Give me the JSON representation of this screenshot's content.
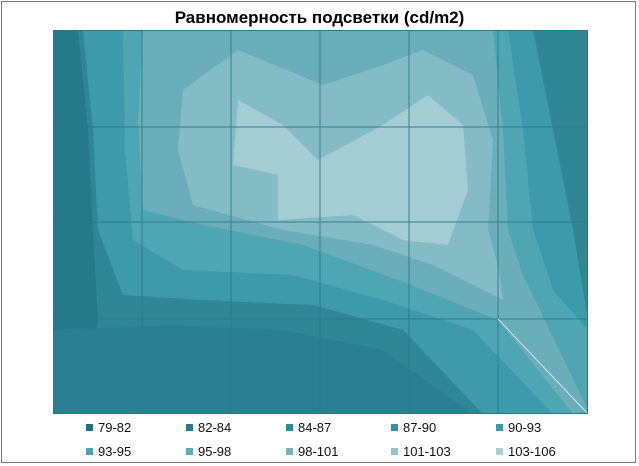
{
  "chart_data": {
    "type": "heatmap",
    "title": "Равномерность подсветки (cd/m2)",
    "grid": true,
    "legend_position": "bottom",
    "levels": [
      {
        "label": "79-82",
        "range": [
          79,
          82
        ],
        "color": "#1f6f80"
      },
      {
        "label": "82-84",
        "range": [
          82,
          84
        ],
        "color": "#227d8d"
      },
      {
        "label": "84-87",
        "range": [
          84,
          87
        ],
        "color": "#2a8b99"
      },
      {
        "label": "87-90",
        "range": [
          87,
          90
        ],
        "color": "#3394a4"
      },
      {
        "label": "90-93",
        "range": [
          90,
          93
        ],
        "color": "#3a9cab"
      },
      {
        "label": "93-95",
        "range": [
          93,
          95
        ],
        "color": "#4ba3b1"
      },
      {
        "label": "95-98",
        "range": [
          95,
          98
        ],
        "color": "#5eaab6"
      },
      {
        "label": "98-101",
        "range": [
          98,
          101
        ],
        "color": "#77b6c0"
      },
      {
        "label": "101-103",
        "range": [
          101,
          103
        ],
        "color": "#93c4cc"
      },
      {
        "label": "103-106",
        "range": [
          103,
          106
        ],
        "color": "#a9d0d6"
      }
    ]
  }
}
